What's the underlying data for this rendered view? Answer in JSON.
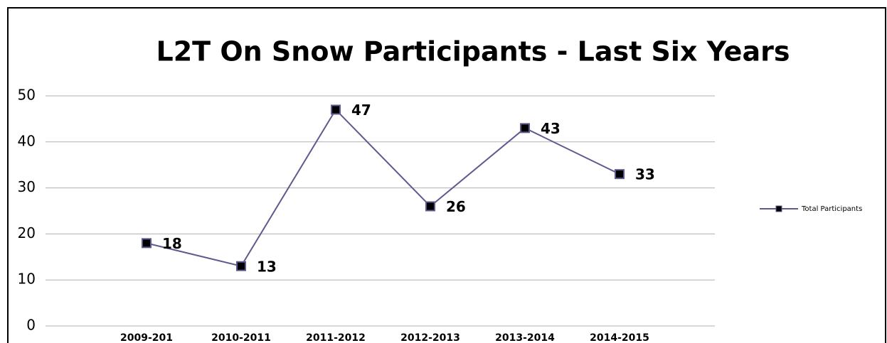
{
  "chart_data": {
    "type": "line",
    "title": "L2T On Snow Participants - Last Six Years",
    "categories": [
      "2009-201",
      "2010-2011",
      "2011-2012",
      "2012-2013",
      "2013-2014",
      "2014-2015"
    ],
    "series": [
      {
        "name": "Total Participants",
        "color": "#5e5a8e",
        "values": [
          18,
          13,
          47,
          26,
          43,
          33
        ]
      }
    ],
    "ylim": [
      0,
      50
    ],
    "yticks": [
      0,
      10,
      20,
      30,
      40,
      50
    ],
    "grid": true,
    "data_labels": true,
    "legend": "right"
  }
}
